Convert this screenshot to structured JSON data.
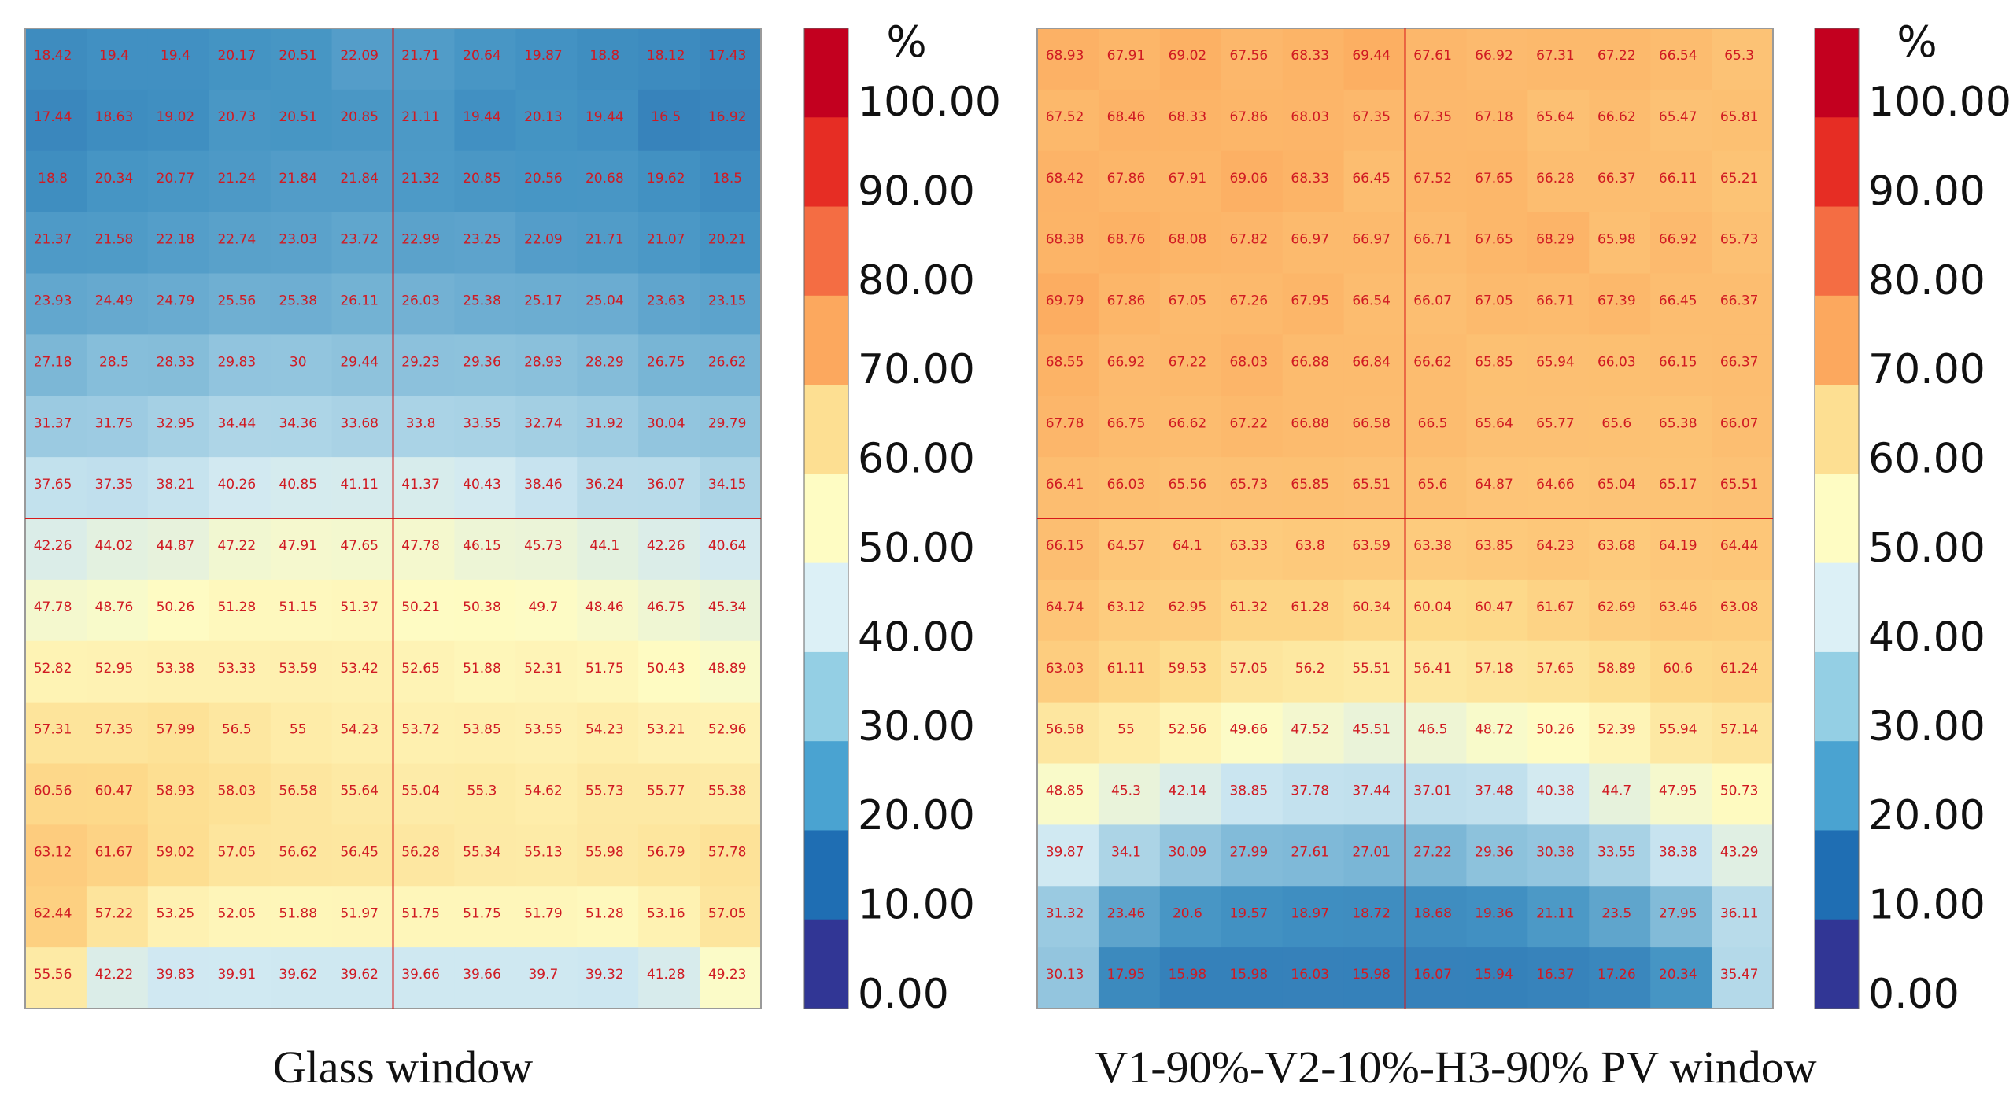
{
  "chart_data": [
    {
      "type": "heatmap",
      "title": "Glass window",
      "unit": "%",
      "colorbar_ticks": [
        "100.00",
        "90.00",
        "80.00",
        "70.00",
        "60.00",
        "50.00",
        "40.00",
        "30.00",
        "20.00",
        "10.00",
        "0.00"
      ],
      "color_range": [
        0,
        100
      ],
      "cell_labels": [
        [
          "18.42",
          "19.4",
          "19.4",
          "20.17",
          "20.51",
          "22.09",
          "21.71",
          "20.64",
          "19.87",
          "18.8",
          "18.12",
          "17.43"
        ],
        [
          "17.44",
          "18.63",
          "19.02",
          "20.73",
          "20.51",
          "20.85",
          "21.11",
          "19.44",
          "20.13",
          "19.44",
          "16.5",
          "16.92"
        ],
        [
          "18.8",
          "20.34",
          "20.77",
          "21.24",
          "21.84",
          "21.84",
          "21.32",
          "20.85",
          "20.56",
          "20.68",
          "19.62",
          "18.5"
        ],
        [
          "21.37",
          "21.58",
          "22.18",
          "22.74",
          "23.03",
          "23.72",
          "22.99",
          "23.25",
          "22.09",
          "21.71",
          "21.07",
          "20.21"
        ],
        [
          "23.93",
          "24.49",
          "24.79",
          "25.56",
          "25.38",
          "26.11",
          "26.03",
          "25.38",
          "25.17",
          "25.04",
          "23.63",
          "23.15"
        ],
        [
          "27.18",
          "28.5",
          "28.33",
          "29.83",
          "30",
          "29.44",
          "29.23",
          "29.36",
          "28.93",
          "28.29",
          "26.75",
          "26.62"
        ],
        [
          "31.37",
          "31.75",
          "32.95",
          "34.44",
          "34.36",
          "33.68",
          "33.8",
          "33.55",
          "32.74",
          "31.92",
          "30.04",
          "29.79"
        ],
        [
          "37.65",
          "37.35",
          "38.21",
          "40.26",
          "40.85",
          "41.11",
          "41.37",
          "40.43",
          "38.46",
          "36.24",
          "36.07",
          "34.15"
        ],
        [
          "42.26",
          "44.02",
          "44.87",
          "47.22",
          "47.91",
          "47.65",
          "47.78",
          "46.15",
          "45.73",
          "44.1",
          "42.26",
          "40.64"
        ],
        [
          "47.78",
          "48.76",
          "50.26",
          "51.28",
          "51.15",
          "51.37",
          "50.21",
          "50.38",
          "49.7",
          "48.46",
          "46.75",
          "45.34"
        ],
        [
          "52.82",
          "52.95",
          "53.38",
          "53.33",
          "53.59",
          "53.42",
          "52.65",
          "51.88",
          "52.31",
          "51.75",
          "50.43",
          "48.89"
        ],
        [
          "57.31",
          "57.35",
          "57.99",
          "56.5",
          "55",
          "54.23",
          "53.72",
          "53.85",
          "53.55",
          "54.23",
          "53.21",
          "52.96"
        ],
        [
          "60.56",
          "60.47",
          "58.93",
          "58.03",
          "56.58",
          "55.64",
          "55.04",
          "55.3",
          "54.62",
          "55.73",
          "55.77",
          "55.38"
        ],
        [
          "63.12",
          "61.67",
          "59.02",
          "57.05",
          "56.62",
          "56.45",
          "56.28",
          "55.34",
          "55.13",
          "55.98",
          "56.79",
          "57.78"
        ],
        [
          "62.44",
          "57.22",
          "53.25",
          "52.05",
          "51.88",
          "51.97",
          "51.75",
          "51.75",
          "51.79",
          "51.28",
          "53.16",
          "57.05"
        ],
        [
          "55.56",
          "42.22",
          "39.83",
          "39.91",
          "39.62",
          "39.62",
          "39.66",
          "39.66",
          "39.7",
          "39.32",
          "41.28",
          "49.23"
        ]
      ]
    },
    {
      "type": "heatmap",
      "title": "V1-90%-V2-10%-H3-90% PV window",
      "unit": "%",
      "colorbar_ticks": [
        "100.00",
        "90.00",
        "80.00",
        "70.00",
        "60.00",
        "50.00",
        "40.00",
        "30.00",
        "20.00",
        "10.00",
        "0.00"
      ],
      "color_range": [
        0,
        100
      ],
      "cell_labels": [
        [
          "68.93",
          "67.91",
          "69.02",
          "67.56",
          "68.33",
          "69.44",
          "67.61",
          "66.92",
          "67.31",
          "67.22",
          "66.54",
          "65.3"
        ],
        [
          "67.52",
          "68.46",
          "68.33",
          "67.86",
          "68.03",
          "67.35",
          "67.35",
          "67.18",
          "65.64",
          "66.62",
          "65.47",
          "65.81"
        ],
        [
          "68.42",
          "67.86",
          "67.91",
          "69.06",
          "68.33",
          "66.45",
          "67.52",
          "67.65",
          "66.28",
          "66.37",
          "66.11",
          "65.21"
        ],
        [
          "68.38",
          "68.76",
          "68.08",
          "67.82",
          "66.97",
          "66.97",
          "66.71",
          "67.65",
          "68.29",
          "65.98",
          "66.92",
          "65.73"
        ],
        [
          "69.79",
          "67.86",
          "67.05",
          "67.26",
          "67.95",
          "66.54",
          "66.07",
          "67.05",
          "66.71",
          "67.39",
          "66.45",
          "66.37"
        ],
        [
          "68.55",
          "66.92",
          "67.22",
          "68.03",
          "66.88",
          "66.84",
          "66.62",
          "65.85",
          "65.94",
          "66.03",
          "66.15",
          "66.37"
        ],
        [
          "67.78",
          "66.75",
          "66.62",
          "67.22",
          "66.88",
          "66.58",
          "66.5",
          "65.64",
          "65.77",
          "65.6",
          "65.38",
          "66.07"
        ],
        [
          "66.41",
          "66.03",
          "65.56",
          "65.73",
          "65.85",
          "65.51",
          "65.6",
          "64.87",
          "64.66",
          "65.04",
          "65.17",
          "65.51"
        ],
        [
          "66.15",
          "64.57",
          "64.1",
          "63.33",
          "63.8",
          "63.59",
          "63.38",
          "63.85",
          "64.23",
          "63.68",
          "64.19",
          "64.44"
        ],
        [
          "64.74",
          "63.12",
          "62.95",
          "61.32",
          "61.28",
          "60.34",
          "60.04",
          "60.47",
          "61.67",
          "62.69",
          "63.46",
          "63.08"
        ],
        [
          "63.03",
          "61.11",
          "59.53",
          "57.05",
          "56.2",
          "55.51",
          "56.41",
          "57.18",
          "57.65",
          "58.89",
          "60.6",
          "61.24"
        ],
        [
          "56.58",
          "55",
          "52.56",
          "49.66",
          "47.52",
          "45.51",
          "46.5",
          "48.72",
          "50.26",
          "52.39",
          "55.94",
          "57.14"
        ],
        [
          "48.85",
          "45.3",
          "42.14",
          "38.85",
          "37.78",
          "37.44",
          "37.01",
          "37.48",
          "40.38",
          "44.7",
          "47.95",
          "50.73"
        ],
        [
          "39.87",
          "34.1",
          "30.09",
          "27.99",
          "27.61",
          "27.01",
          "27.22",
          "29.36",
          "30.38",
          "33.55",
          "38.38",
          "43.29"
        ],
        [
          "31.32",
          "23.46",
          "20.6",
          "19.57",
          "18.97",
          "18.72",
          "18.68",
          "19.36",
          "21.11",
          "23.5",
          "27.95",
          "36.11"
        ],
        [
          "30.13",
          "17.95",
          "15.98",
          "15.98",
          "16.03",
          "15.98",
          "16.07",
          "15.94",
          "16.37",
          "17.26",
          "20.34",
          "35.47"
        ]
      ]
    }
  ],
  "colorbar_colors": [
    "#313695",
    "#1f6eb3",
    "#4aa3d1",
    "#94cfe4",
    "#dcf0f6",
    "#fefcc3",
    "#fddf92",
    "#fca85e",
    "#f46d43",
    "#e62d24",
    "#c3001f"
  ],
  "cell_text_color": "#d01a22",
  "crosshair_color": "#d7191c"
}
